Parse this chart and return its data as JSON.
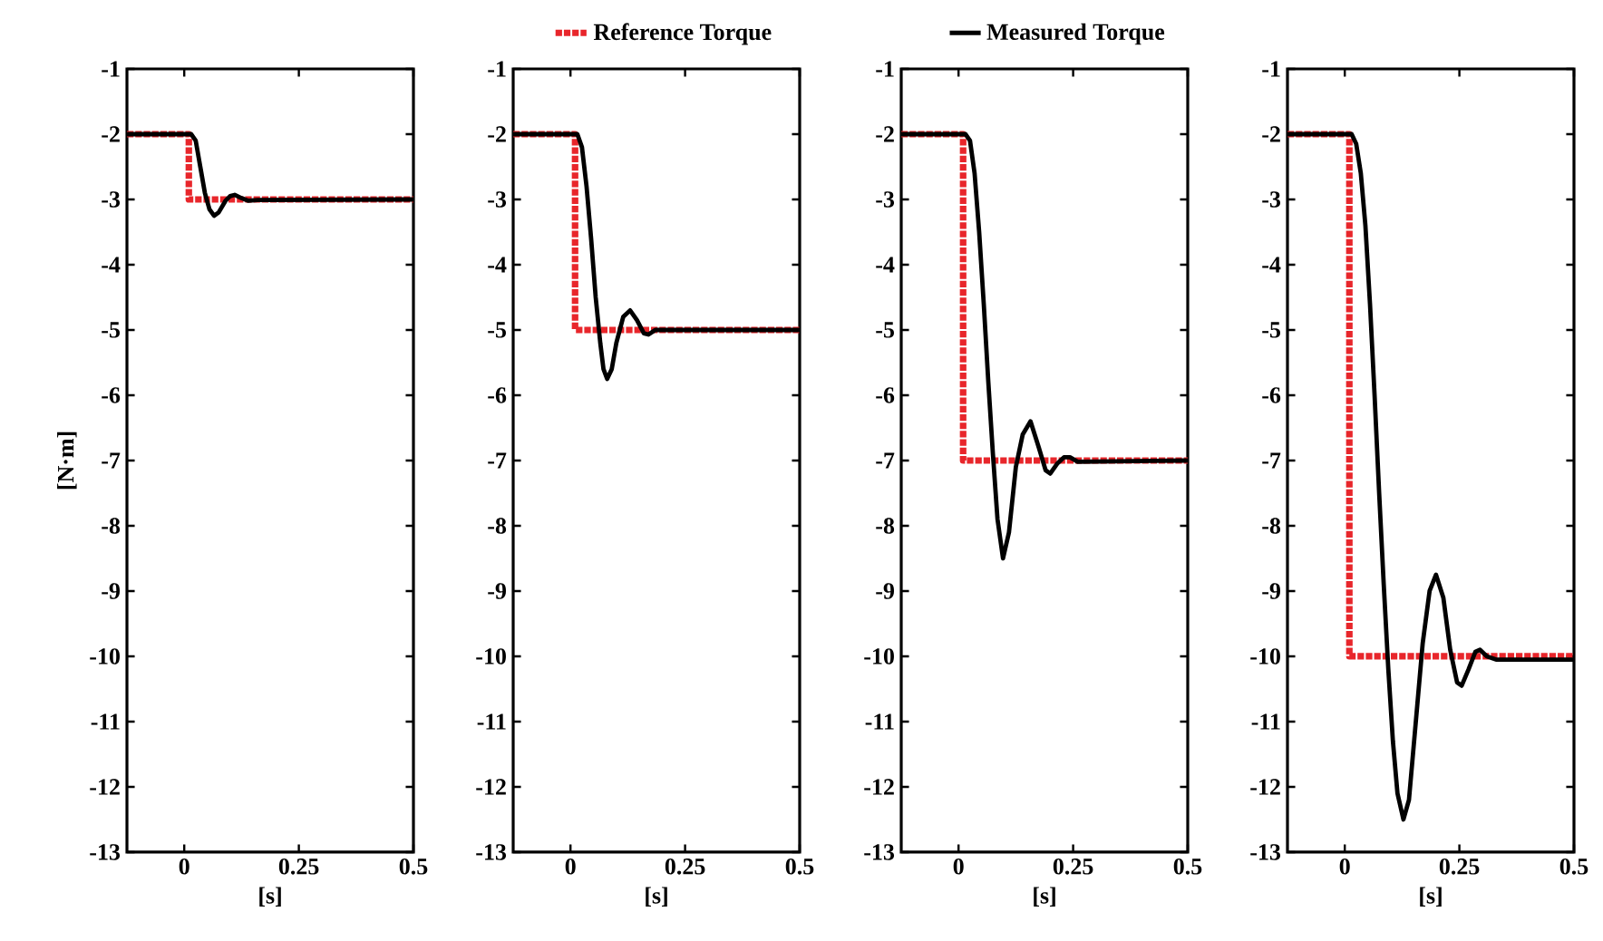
{
  "chart_data": [
    {
      "type": "line",
      "ylabel": "[N·m]",
      "xlabel": "[s]",
      "xlim": [
        -0.125,
        0.5
      ],
      "xticks": [
        0,
        0.25,
        0.5
      ],
      "ylim": [
        -13,
        -1
      ],
      "yticks": [
        -13,
        -12,
        -11,
        -10,
        -9,
        -8,
        -7,
        -6,
        -5,
        -4,
        -3,
        -2,
        -1
      ],
      "legend": "top",
      "series": [
        {
          "name": "Reference Torque",
          "color": "#e8262b",
          "line_style": "dotted",
          "x": [
            -0.125,
            0.01,
            0.01,
            0.5
          ],
          "values": [
            -2,
            -2,
            -3,
            -3
          ]
        },
        {
          "name": "Measured Torque",
          "color": "#000000",
          "line_style": "solid",
          "x": [
            -0.125,
            0.015,
            0.025,
            0.035,
            0.045,
            0.055,
            0.065,
            0.075,
            0.09,
            0.1,
            0.11,
            0.125,
            0.14,
            0.16,
            0.5
          ],
          "values": [
            -2,
            -2,
            -2.1,
            -2.5,
            -2.9,
            -3.15,
            -3.25,
            -3.2,
            -3.02,
            -2.95,
            -2.93,
            -2.98,
            -3.02,
            -3.01,
            -3
          ]
        }
      ]
    },
    {
      "type": "line",
      "xlabel": "[s]",
      "xlim": [
        -0.125,
        0.5
      ],
      "xticks": [
        0,
        0.25,
        0.5
      ],
      "ylim": [
        -13,
        -1
      ],
      "yticks": [
        -13,
        -12,
        -11,
        -10,
        -9,
        -8,
        -7,
        -6,
        -5,
        -4,
        -3,
        -2,
        -1
      ],
      "series": [
        {
          "color": "#e8262b",
          "line_style": "dotted",
          "x": [
            -0.125,
            0.01,
            0.01,
            0.5
          ],
          "values": [
            -2,
            -2,
            -5,
            -5
          ]
        },
        {
          "color": "#000000",
          "line_style": "solid",
          "x": [
            -0.125,
            0.015,
            0.025,
            0.035,
            0.045,
            0.055,
            0.065,
            0.072,
            0.08,
            0.09,
            0.1,
            0.115,
            0.13,
            0.145,
            0.16,
            0.17,
            0.185,
            0.5
          ],
          "values": [
            -2,
            -2,
            -2.2,
            -2.8,
            -3.6,
            -4.5,
            -5.2,
            -5.6,
            -5.75,
            -5.6,
            -5.2,
            -4.8,
            -4.7,
            -4.85,
            -5.05,
            -5.07,
            -5.0,
            -5
          ]
        }
      ]
    },
    {
      "type": "line",
      "xlabel": "[s]",
      "xlim": [
        -0.125,
        0.5
      ],
      "xticks": [
        0,
        0.25,
        0.5
      ],
      "ylim": [
        -13,
        -1
      ],
      "yticks": [
        -13,
        -12,
        -11,
        -10,
        -9,
        -8,
        -7,
        -6,
        -5,
        -4,
        -3,
        -2,
        -1
      ],
      "series": [
        {
          "color": "#e8262b",
          "line_style": "dotted",
          "x": [
            -0.125,
            0.01,
            0.01,
            0.5
          ],
          "values": [
            -2,
            -2,
            -7,
            -7
          ]
        },
        {
          "color": "#000000",
          "line_style": "solid",
          "x": [
            -0.125,
            0.015,
            0.025,
            0.035,
            0.045,
            0.055,
            0.065,
            0.075,
            0.085,
            0.097,
            0.11,
            0.125,
            0.14,
            0.157,
            0.175,
            0.19,
            0.2,
            0.215,
            0.23,
            0.243,
            0.26,
            0.5
          ],
          "values": [
            -2,
            -2,
            -2.1,
            -2.6,
            -3.5,
            -4.6,
            -5.8,
            -6.9,
            -7.9,
            -8.5,
            -8.1,
            -7.1,
            -6.6,
            -6.4,
            -6.8,
            -7.15,
            -7.2,
            -7.05,
            -6.95,
            -6.95,
            -7.02,
            -7
          ]
        }
      ]
    },
    {
      "type": "line",
      "xlabel": "[s]",
      "xlim": [
        -0.125,
        0.5
      ],
      "xticks": [
        0,
        0.25,
        0.5
      ],
      "ylim": [
        -13,
        -1
      ],
      "yticks": [
        -13,
        -12,
        -11,
        -10,
        -9,
        -8,
        -7,
        -6,
        -5,
        -4,
        -3,
        -2,
        -1
      ],
      "series": [
        {
          "color": "#e8262b",
          "line_style": "dotted",
          "x": [
            -0.125,
            0.01,
            0.01,
            0.5
          ],
          "values": [
            -2,
            -2,
            -10,
            -10
          ]
        },
        {
          "color": "#000000",
          "line_style": "solid",
          "x": [
            -0.125,
            0.015,
            0.025,
            0.035,
            0.045,
            0.055,
            0.065,
            0.075,
            0.085,
            0.095,
            0.105,
            0.115,
            0.128,
            0.14,
            0.155,
            0.17,
            0.185,
            0.199,
            0.215,
            0.23,
            0.245,
            0.255,
            0.27,
            0.285,
            0.295,
            0.31,
            0.33,
            0.5
          ],
          "values": [
            -2,
            -2,
            -2.15,
            -2.6,
            -3.4,
            -4.6,
            -6.0,
            -7.5,
            -8.9,
            -10.2,
            -11.3,
            -12.1,
            -12.5,
            -12.2,
            -11.0,
            -9.8,
            -9.0,
            -8.75,
            -9.1,
            -9.9,
            -10.4,
            -10.45,
            -10.2,
            -9.93,
            -9.9,
            -10.0,
            -10.05,
            -10.05
          ]
        }
      ]
    }
  ]
}
